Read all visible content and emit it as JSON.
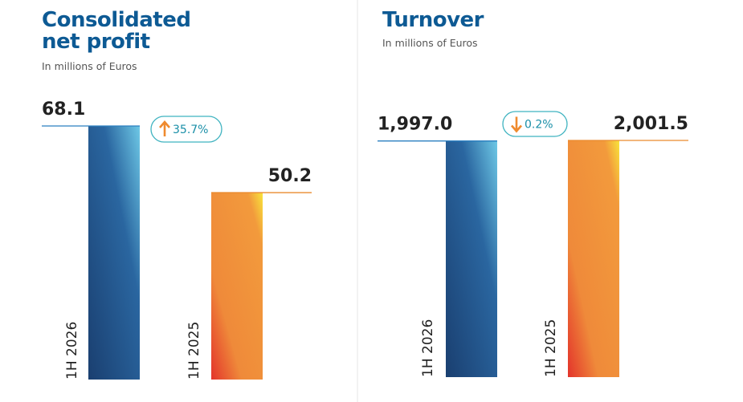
{
  "chart_data": [
    {
      "type": "bar",
      "title": "Consolidated net profit",
      "subtitle": "In millions of Euros",
      "categories": [
        "1H 2026",
        "1H 2025"
      ],
      "values": [
        68.1,
        50.2
      ],
      "change": "35.7%"
    },
    {
      "type": "bar",
      "title": "Turnover",
      "subtitle": "In millions of Euros",
      "categories": [
        "1H 2026",
        "1H 2025"
      ],
      "values": [
        1997.0,
        2001.5
      ],
      "value_labels": [
        "1,997.0",
        "2,001.5"
      ],
      "change": "0.2%"
    }
  ]
}
